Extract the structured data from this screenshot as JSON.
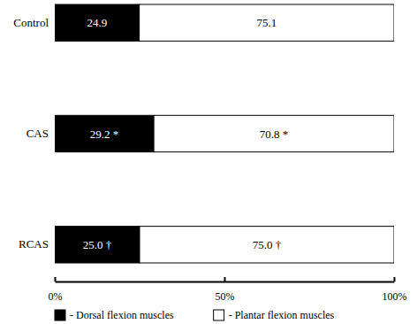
{
  "chart_data": {
    "type": "bar",
    "orientation": "horizontal",
    "stacked": true,
    "data_labels": true,
    "legend": "bottom",
    "categories": [
      "Control",
      "CAS",
      "RCAS"
    ],
    "series": [
      {
        "name": "- Dorsal flexion muscles",
        "color": "#000000",
        "values": [
          24.9,
          29.2,
          25.0
        ],
        "value_labels": [
          "24.9",
          "29.2 *",
          "25.0 †"
        ]
      },
      {
        "name": "- Plantar flexion muscles",
        "color": "#ffffff",
        "values": [
          75.1,
          70.8,
          75.0
        ],
        "value_labels": [
          "75.1",
          "70.8 *",
          "75.0 †"
        ]
      }
    ],
    "xlim": [
      0,
      100
    ],
    "xticks": [
      {
        "value": 0,
        "label": "0%"
      },
      {
        "value": 50,
        "label": "50%"
      },
      {
        "value": 100,
        "label": "100%"
      }
    ]
  }
}
